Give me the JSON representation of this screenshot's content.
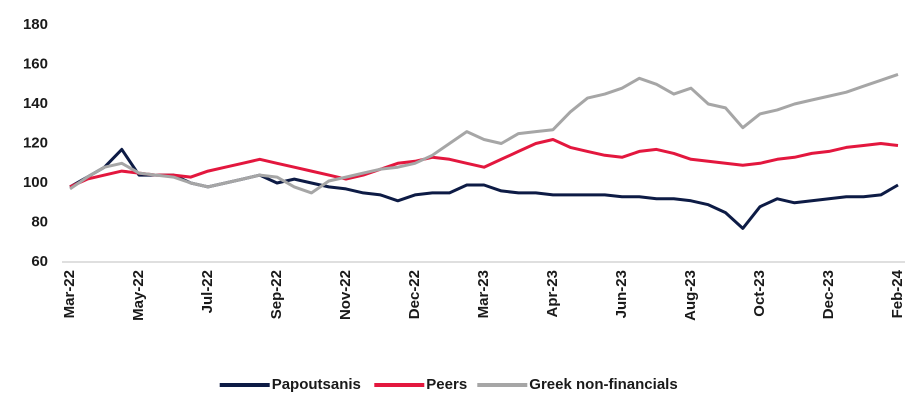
{
  "chart_data": {
    "type": "line",
    "categories": [
      "Mar-22",
      null,
      null,
      null,
      "May-22",
      null,
      null,
      null,
      "Jul-22",
      null,
      null,
      null,
      "Sep-22",
      null,
      null,
      null,
      "Nov-22",
      null,
      null,
      null,
      "Dec-22",
      null,
      null,
      null,
      "Mar-23",
      null,
      null,
      null,
      "Apr-23",
      null,
      null,
      null,
      "Jun-23",
      null,
      null,
      null,
      "Aug-23",
      null,
      null,
      null,
      "Oct-23",
      null,
      null,
      null,
      "Dec-23",
      null,
      null,
      null,
      "Feb-24"
    ],
    "series": [
      {
        "name": "Papoutsanis",
        "color": "#0d1b45",
        "values": [
          98,
          103,
          108,
          117,
          104,
          104,
          104,
          100,
          98,
          100,
          102,
          104,
          100,
          102,
          100,
          98,
          97,
          95,
          94,
          91,
          94,
          95,
          95,
          99,
          99,
          96,
          95,
          95,
          94,
          94,
          94,
          94,
          93,
          93,
          92,
          92,
          91,
          89,
          85,
          77,
          88,
          92,
          90,
          91,
          92,
          93,
          93,
          94,
          99
        ]
      },
      {
        "name": "Peers",
        "color": "#e3173e",
        "values": [
          98,
          102,
          104,
          106,
          105,
          104,
          104,
          103,
          106,
          108,
          110,
          112,
          110,
          108,
          106,
          104,
          102,
          104,
          107,
          110,
          111,
          113,
          112,
          110,
          108,
          112,
          116,
          120,
          122,
          118,
          116,
          114,
          113,
          116,
          117,
          115,
          112,
          111,
          110,
          109,
          110,
          112,
          113,
          115,
          116,
          118,
          119,
          120,
          119
        ]
      },
      {
        "name": "Greek non-financials",
        "color": "#a6a6a6",
        "values": [
          97,
          103,
          108,
          110,
          105,
          104,
          103,
          100,
          98,
          100,
          102,
          104,
          103,
          98,
          95,
          101,
          103,
          105,
          107,
          108,
          110,
          114,
          120,
          126,
          122,
          120,
          125,
          126,
          127,
          136,
          143,
          145,
          148,
          153,
          150,
          145,
          148,
          140,
          138,
          128,
          135,
          137,
          140,
          142,
          144,
          146,
          149,
          152,
          155
        ]
      }
    ],
    "ylim": [
      60,
      180
    ],
    "yticks": [
      60,
      80,
      100,
      120,
      140,
      160,
      180
    ],
    "legend": "bottom"
  }
}
